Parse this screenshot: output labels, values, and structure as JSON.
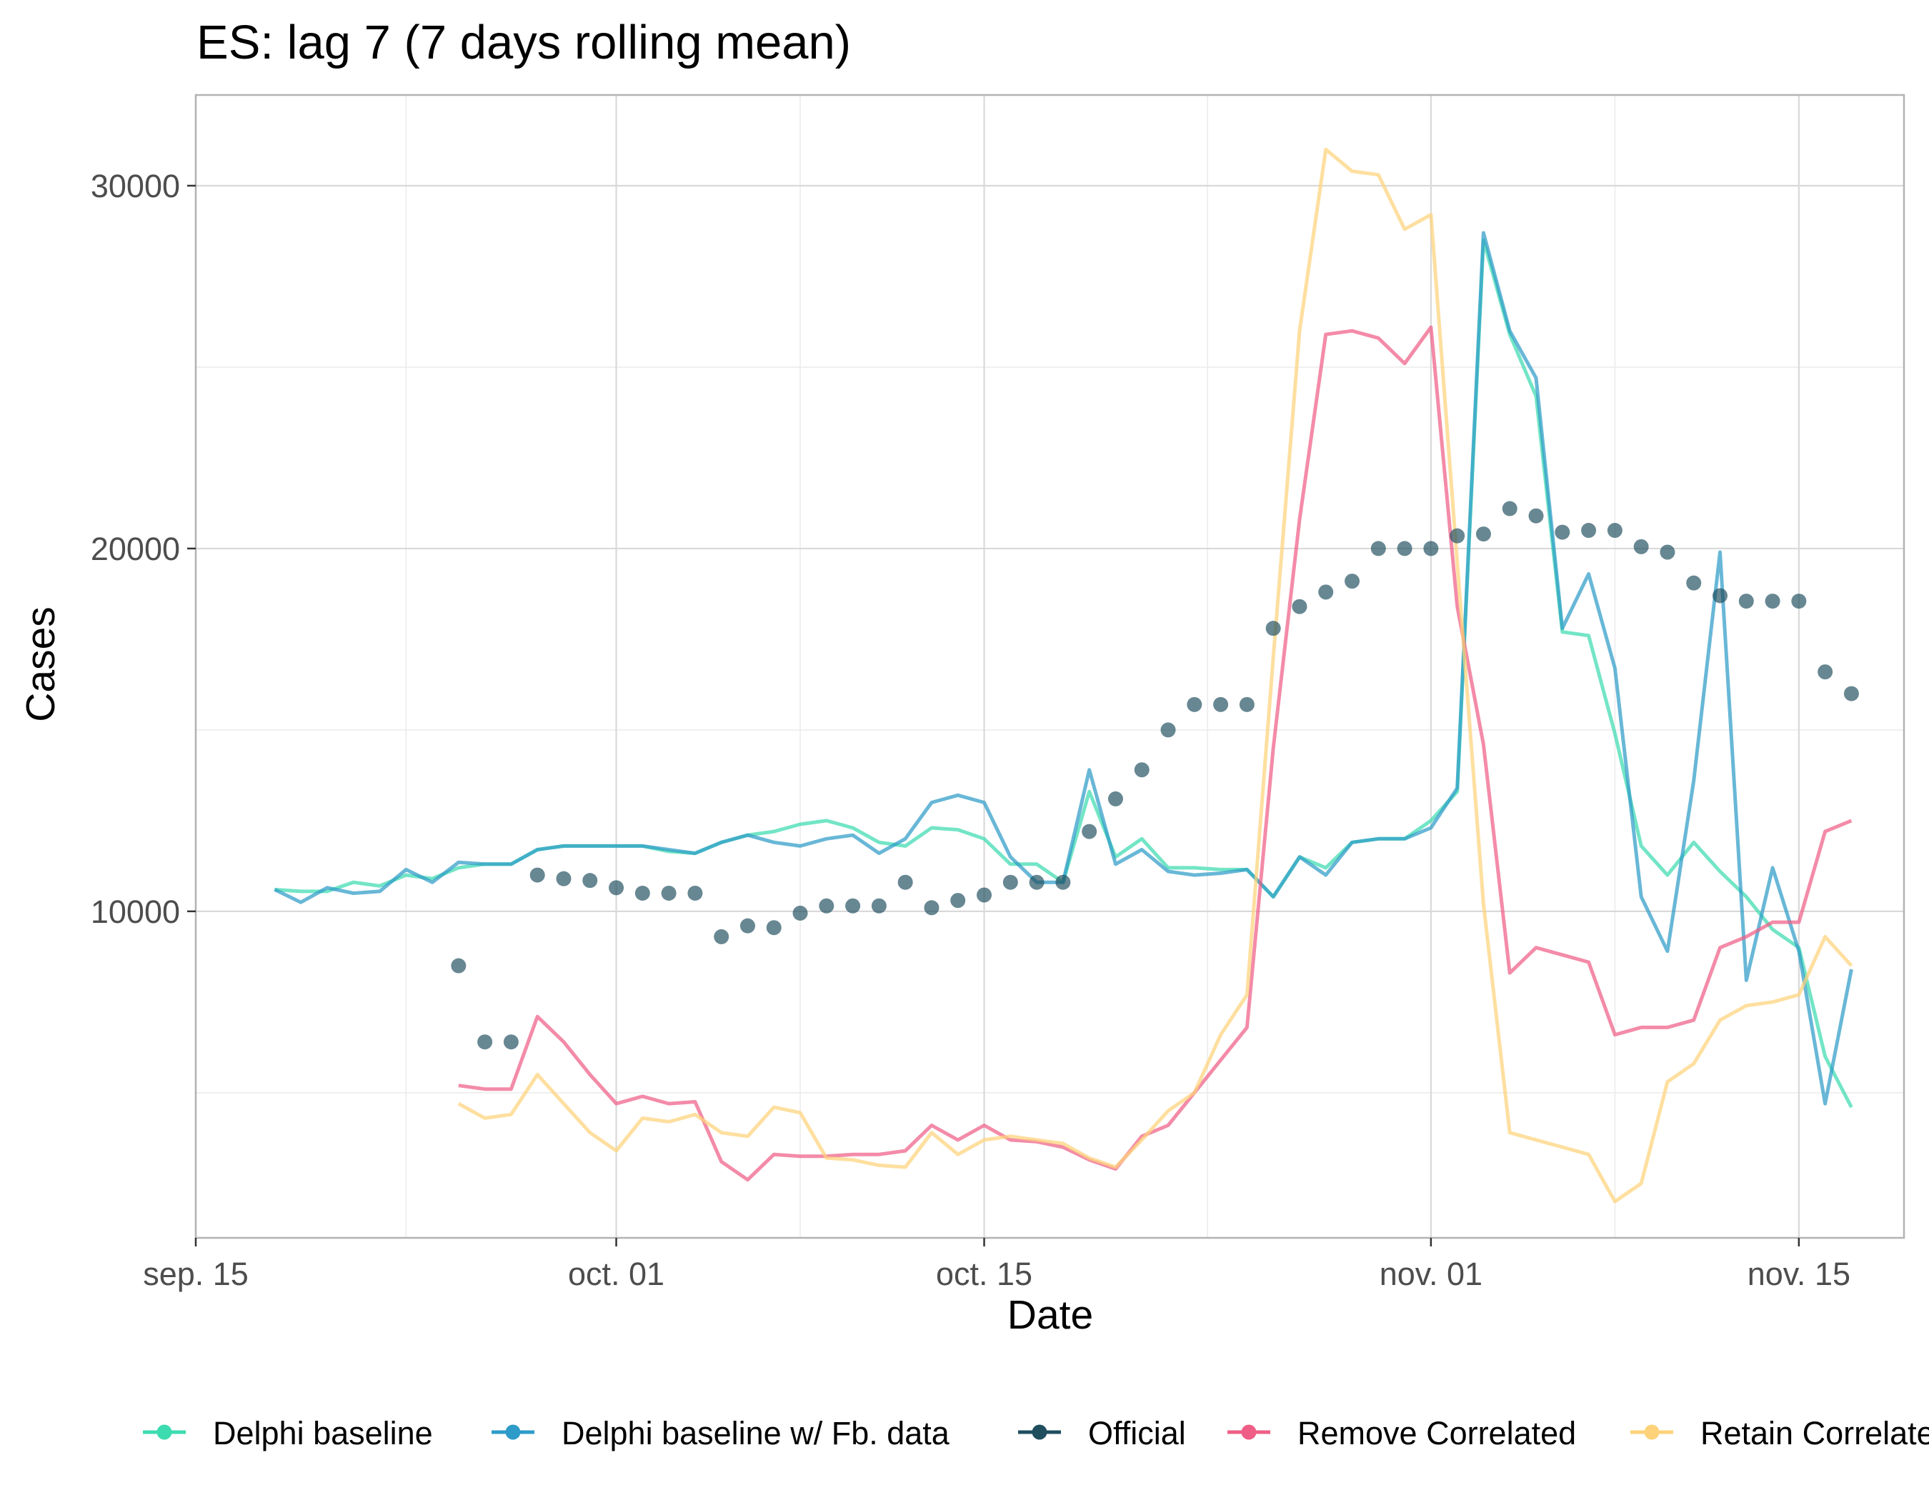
{
  "chart_data": {
    "type": "line",
    "title": "ES: lag 7 (7 days rolling mean)",
    "xlabel": "Date",
    "ylabel": "Cases",
    "x_tick_labels": [
      "sep. 15",
      "oct. 01",
      "oct. 15",
      "nov. 01",
      "nov. 15"
    ],
    "x_tick_day_offsets": [
      0,
      16,
      30,
      47,
      61
    ],
    "x_axis_start_day_offset": 0,
    "xlim_day_offsets": [
      0,
      65
    ],
    "y_tick_labels": [
      "10000",
      "20000",
      "30000"
    ],
    "y_ticks": [
      10000,
      20000,
      30000
    ],
    "ylim": [
      1000,
      32500
    ],
    "grid": true,
    "legend_position": "bottom",
    "series": [
      {
        "name": "Delphi baseline",
        "color": "#3DDBB0",
        "kind": "line",
        "x": [
          3,
          4,
          5,
          6,
          7,
          8,
          9,
          10,
          11,
          12,
          13,
          14,
          15,
          16,
          17,
          18,
          19,
          20,
          21,
          22,
          23,
          24,
          25,
          26,
          27,
          28,
          29,
          30,
          31,
          32,
          33,
          34,
          35,
          36,
          37,
          38,
          39,
          40,
          41,
          42,
          43,
          44,
          45,
          46,
          47,
          48,
          49,
          50,
          51,
          52,
          53,
          54,
          55,
          56,
          57,
          58,
          59,
          60,
          61,
          62,
          63
        ],
        "y": [
          10600,
          10550,
          10550,
          10800,
          10700,
          11000,
          10900,
          11200,
          11300,
          11300,
          11700,
          11800,
          11800,
          11800,
          11800,
          11650,
          11600,
          11900,
          12100,
          12200,
          12400,
          12500,
          12300,
          11900,
          11800,
          12300,
          12250,
          12000,
          11300,
          11300,
          10800,
          13300,
          11500,
          12000,
          11200,
          11200,
          11150,
          11150,
          10400,
          11500,
          11200,
          11900,
          12000,
          12000,
          12500,
          13300,
          28500,
          25900,
          24200,
          17700,
          17600,
          14900,
          11800,
          11000,
          11900,
          11100,
          10400,
          9500,
          9000,
          6000,
          4600
        ]
      },
      {
        "name": "Delphi baseline w/ Fb. data",
        "color": "#2E9BC8",
        "kind": "line",
        "x": [
          3,
          4,
          5,
          6,
          7,
          8,
          9,
          10,
          11,
          12,
          13,
          14,
          15,
          16,
          17,
          18,
          19,
          20,
          21,
          22,
          23,
          24,
          25,
          26,
          27,
          28,
          29,
          30,
          31,
          32,
          33,
          34,
          35,
          36,
          37,
          38,
          39,
          40,
          41,
          42,
          43,
          44,
          45,
          46,
          47,
          48,
          49,
          50,
          51,
          52,
          53,
          54,
          55,
          56,
          57,
          58,
          59,
          60,
          61,
          62,
          63
        ],
        "y": [
          10600,
          10250,
          10650,
          10500,
          10550,
          11150,
          10800,
          11350,
          11300,
          11300,
          11700,
          11800,
          11800,
          11800,
          11800,
          11700,
          11600,
          11900,
          12100,
          11900,
          11800,
          12000,
          12100,
          11600,
          12000,
          13000,
          13200,
          13000,
          11500,
          10800,
          10800,
          13900,
          11300,
          11700,
          11100,
          11000,
          11050,
          11150,
          10400,
          11500,
          11000,
          11900,
          12000,
          12000,
          12300,
          13400,
          28700,
          26000,
          24700,
          17800,
          19300,
          16700,
          10400,
          8900,
          13600,
          19900,
          8100,
          11200,
          8900,
          4700,
          8400
        ]
      },
      {
        "name": "Official",
        "color": "#1F4E5F",
        "kind": "points",
        "x": [
          10,
          11,
          12,
          13,
          14,
          15,
          16,
          17,
          18,
          19,
          20,
          21,
          22,
          23,
          24,
          25,
          26,
          27,
          28,
          29,
          30,
          31,
          32,
          33,
          34,
          35,
          36,
          37,
          38,
          39,
          40,
          41,
          42,
          43,
          44,
          45,
          46,
          47,
          48,
          49,
          50,
          51,
          52,
          53,
          54,
          55,
          56,
          57,
          58,
          59,
          60,
          61,
          62,
          63
        ],
        "y": [
          8500,
          6400,
          6400,
          11000,
          10900,
          10850,
          10650,
          10500,
          10500,
          10500,
          9300,
          9600,
          9550,
          9950,
          10150,
          10150,
          10150,
          10800,
          10100,
          10300,
          10450,
          10800,
          10800,
          10800,
          12200,
          13100,
          13900,
          15000,
          15700,
          15700,
          15700,
          17800,
          18400,
          18800,
          19100,
          20000,
          20000,
          20000,
          20350,
          20400,
          21100,
          20900,
          20450,
          20500,
          20500,
          20050,
          19900,
          19050,
          18700,
          18550,
          18550,
          18550,
          16600,
          16000
        ]
      },
      {
        "name": "Remove Correlated",
        "color": "#EE5E86",
        "kind": "line",
        "x": [
          10,
          11,
          12,
          13,
          14,
          15,
          16,
          17,
          18,
          19,
          20,
          21,
          22,
          23,
          24,
          25,
          26,
          27,
          28,
          29,
          30,
          31,
          32,
          33,
          34,
          35,
          36,
          37,
          38,
          39,
          40,
          41,
          42,
          43,
          44,
          45,
          46,
          47,
          48,
          49,
          50,
          51,
          52,
          53,
          54,
          55,
          56,
          57,
          58,
          59,
          60,
          61,
          62,
          63
        ],
        "y": [
          5200,
          5100,
          5100,
          7100,
          6400,
          5500,
          4700,
          4900,
          4700,
          4750,
          3100,
          2600,
          3300,
          3250,
          3250,
          3300,
          3300,
          3400,
          4100,
          3700,
          4100,
          3700,
          3650,
          3500,
          3150,
          2900,
          3800,
          4100,
          5000,
          5900,
          6800,
          14500,
          20800,
          25900,
          26000,
          25800,
          25100,
          26100,
          18400,
          14600,
          8300,
          9000,
          8800,
          8600,
          6600,
          6800,
          6800,
          7000,
          9000,
          9300,
          9700,
          9700,
          12200,
          12500
        ]
      },
      {
        "name": "Retain Correlated",
        "color": "#FDD27A",
        "kind": "line",
        "x": [
          10,
          11,
          12,
          13,
          14,
          15,
          16,
          17,
          18,
          19,
          20,
          21,
          22,
          23,
          24,
          25,
          26,
          27,
          28,
          29,
          30,
          31,
          32,
          33,
          34,
          35,
          36,
          37,
          38,
          39,
          40,
          41,
          42,
          43,
          44,
          45,
          46,
          47,
          48,
          49,
          50,
          51,
          52,
          53,
          54,
          55,
          56,
          57,
          58,
          59,
          60,
          61,
          62,
          63
        ],
        "y": [
          4700,
          4300,
          4400,
          5500,
          4700,
          3900,
          3400,
          4300,
          4200,
          4400,
          3900,
          3800,
          4600,
          4450,
          3200,
          3150,
          3000,
          2950,
          3900,
          3300,
          3700,
          3800,
          3700,
          3600,
          3200,
          2950,
          3700,
          4500,
          5000,
          6600,
          7700,
          17000,
          26000,
          31000,
          30400,
          30300,
          28800,
          29200,
          19600,
          10200,
          3900,
          3700,
          3500,
          3300,
          2000,
          2500,
          5300,
          5800,
          7000,
          7400,
          7500,
          7700,
          9300,
          8500
        ]
      }
    ]
  }
}
